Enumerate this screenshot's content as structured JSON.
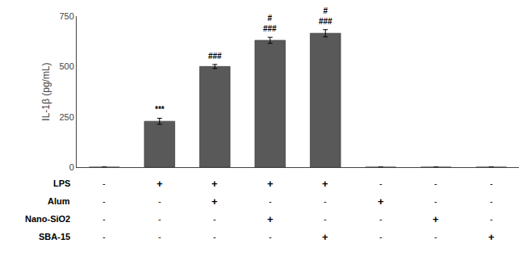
{
  "chart_data": {
    "type": "bar",
    "ylabel": "IL-1β (pg/mL)",
    "categories": [
      null,
      null,
      null,
      null,
      null,
      null,
      null,
      null
    ],
    "values": [
      0,
      228,
      500,
      630,
      665,
      0,
      0,
      0
    ],
    "errors": [
      0,
      15,
      10,
      15,
      18,
      0,
      0,
      0
    ],
    "color": "#595959",
    "ylim": [
      0,
      750
    ],
    "yticks": [
      0,
      250,
      500,
      750
    ],
    "grid": false,
    "annotations": [
      {
        "x": 1,
        "text": [
          "***"
        ]
      },
      {
        "x": 2,
        "text": [
          "###"
        ]
      },
      {
        "x": 3,
        "text": [
          "#",
          "###"
        ]
      },
      {
        "x": 4,
        "text": [
          "#",
          "###"
        ]
      }
    ],
    "table_rows": [
      "LPS",
      "Alum",
      "Nano-SiO2",
      "SBA-15"
    ],
    "table_data": [
      [
        "-",
        "+",
        "+",
        "+",
        "+",
        "-",
        "-",
        "-"
      ],
      [
        "-",
        "-",
        "+",
        "-",
        "-",
        "+",
        "-",
        "-"
      ],
      [
        "-",
        "-",
        "-",
        "+",
        "-",
        "-",
        "+",
        "-"
      ],
      [
        "-",
        "-",
        "-",
        "-",
        "+",
        "-",
        "-",
        "+"
      ]
    ]
  }
}
